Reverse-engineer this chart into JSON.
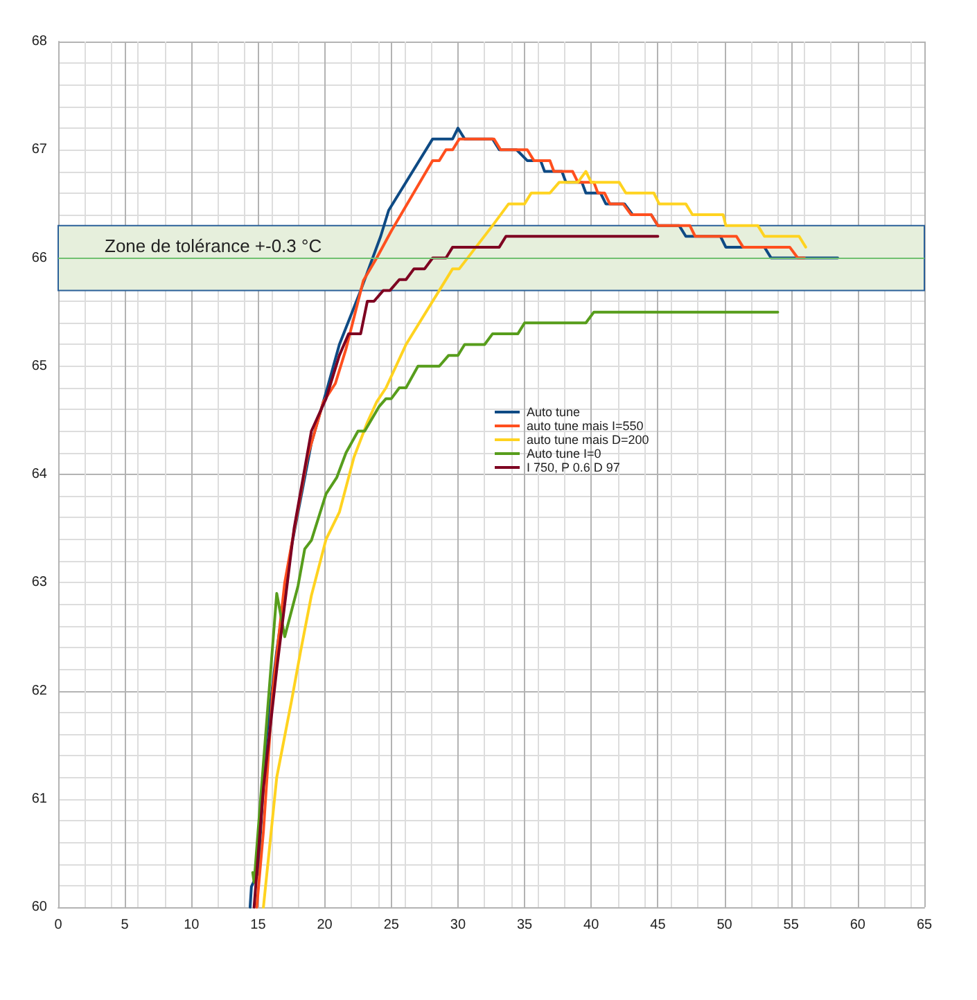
{
  "chart_data": {
    "type": "line",
    "xlim": [
      0,
      65
    ],
    "xticks": [
      0,
      5,
      10,
      15,
      20,
      25,
      30,
      35,
      40,
      45,
      50,
      55,
      60,
      65
    ],
    "ylim": [
      60,
      68
    ],
    "yticks": [
      60,
      61,
      62,
      63,
      64,
      65,
      66,
      67,
      68
    ],
    "grid": true,
    "legend": "center",
    "marker": "none",
    "line_style": "solid",
    "series": [
      {
        "name": "Auto tune",
        "color": "#0e4a84",
        "x": [
          14.4,
          14.5,
          15.0,
          15.6,
          16.4,
          17.5,
          19.0,
          20.2,
          21.1,
          22.7,
          24.2,
          24.8,
          28.1,
          29.6,
          30.0,
          30.5,
          32.6,
          33.1,
          34.4,
          35.2,
          36.2,
          36.5,
          37.8,
          38.1,
          39.3,
          39.6,
          40.7,
          41.1,
          42.5,
          43.1,
          44.5,
          45.0,
          46.6,
          47.1,
          49.7,
          50.1,
          53.0,
          53.5,
          58.5
        ],
        "values": [
          60.0,
          60.19,
          60.32,
          61.54,
          62.37,
          63.33,
          64.29,
          64.8,
          65.2,
          65.7,
          66.2,
          66.44,
          67.1,
          67.1,
          67.2,
          67.1,
          67.1,
          67.0,
          67.0,
          66.9,
          66.9,
          66.8,
          66.8,
          66.7,
          66.7,
          66.6,
          66.6,
          66.5,
          66.5,
          66.4,
          66.4,
          66.3,
          66.3,
          66.2,
          66.2,
          66.1,
          66.1,
          66.0,
          66.0
        ]
      },
      {
        "name": "auto tune mais I=550",
        "color": "#ff4f1e",
        "x": [
          14.9,
          15.4,
          16.1,
          17.0,
          18.7,
          19.9,
          20.8,
          21.6,
          22.9,
          23.9,
          25.0,
          28.1,
          28.6,
          29.1,
          29.6,
          30.1,
          32.7,
          33.2,
          35.2,
          35.7,
          36.9,
          37.2,
          38.6,
          39.0,
          40.2,
          40.5,
          41.0,
          41.4,
          42.4,
          43.0,
          44.5,
          45.0,
          47.4,
          47.8,
          50.9,
          51.4,
          54.9,
          55.5,
          56.0
        ],
        "values": [
          60.0,
          60.7,
          62.0,
          63.0,
          64.16,
          64.67,
          64.84,
          65.16,
          65.79,
          66.0,
          66.25,
          66.9,
          66.9,
          67.0,
          67.0,
          67.1,
          67.1,
          67.0,
          67.0,
          66.9,
          66.9,
          66.8,
          66.8,
          66.7,
          66.7,
          66.6,
          66.6,
          66.5,
          66.5,
          66.4,
          66.4,
          66.3,
          66.3,
          66.2,
          66.2,
          66.1,
          66.1,
          66.0,
          66.0
        ]
      },
      {
        "name": "auto tune mais D=200",
        "color": "#ffd320",
        "x": [
          15.4,
          16.4,
          17.5,
          18.2,
          19.0,
          20.1,
          21.1,
          22.2,
          23.2,
          23.9,
          24.6,
          26.1,
          29.6,
          30.1,
          32.6,
          33.8,
          35.0,
          35.5,
          36.9,
          37.6,
          39.0,
          39.6,
          40.0,
          42.1,
          42.6,
          44.7,
          45.1,
          47.1,
          47.6,
          49.9,
          50.1,
          52.5,
          53.0,
          55.6,
          56.1
        ],
        "values": [
          60.0,
          61.2,
          61.9,
          62.37,
          62.88,
          63.4,
          63.65,
          64.16,
          64.48,
          64.67,
          64.8,
          65.2,
          65.9,
          65.9,
          66.3,
          66.5,
          66.5,
          66.6,
          66.6,
          66.7,
          66.7,
          66.8,
          66.7,
          66.7,
          66.6,
          66.6,
          66.5,
          66.5,
          66.4,
          66.4,
          66.3,
          66.3,
          66.2,
          66.2,
          66.1
        ]
      },
      {
        "name": "Auto tune I=0",
        "color": "#579d1c",
        "x": [
          14.6,
          14.7,
          16.4,
          17.0,
          18.0,
          18.5,
          19.0,
          20.1,
          20.9,
          21.6,
          22.5,
          23.0,
          24.1,
          24.6,
          25.0,
          25.6,
          26.1,
          27.0,
          28.6,
          29.3,
          30.0,
          30.5,
          32.0,
          32.6,
          34.5,
          35.0,
          39.6,
          40.2,
          54.0
        ],
        "values": [
          60.32,
          60.23,
          62.9,
          62.5,
          62.97,
          63.31,
          63.39,
          63.82,
          63.97,
          64.2,
          64.4,
          64.4,
          64.63,
          64.7,
          64.7,
          64.8,
          64.8,
          65.0,
          65.0,
          65.1,
          65.1,
          65.2,
          65.2,
          65.3,
          65.3,
          65.4,
          65.4,
          65.5,
          65.5
        ]
      },
      {
        "name": "I 750, P 0.6 D 97",
        "color": "#7e0021",
        "x": [
          14.7,
          15.4,
          16.4,
          17.7,
          19.0,
          20.1,
          21.1,
          21.8,
          22.7,
          23.2,
          23.7,
          24.4,
          24.9,
          25.6,
          26.1,
          26.7,
          27.5,
          28.1,
          29.1,
          29.6,
          33.1,
          33.6,
          45.0
        ],
        "values": [
          60.0,
          61.1,
          62.2,
          63.5,
          64.4,
          64.7,
          65.1,
          65.3,
          65.3,
          65.6,
          65.6,
          65.7,
          65.7,
          65.8,
          65.8,
          65.9,
          65.9,
          66.0,
          66.0,
          66.1,
          66.1,
          66.2,
          66.2
        ]
      }
    ],
    "bands": [
      {
        "axis": "y",
        "from": 65.7,
        "to": 66.3,
        "label": "Zone de tolérance +-0.3 °C",
        "color": "#e6efdc"
      }
    ],
    "ref_lines": [
      {
        "axis": "y",
        "value": 66,
        "color": "#70c070"
      }
    ]
  }
}
